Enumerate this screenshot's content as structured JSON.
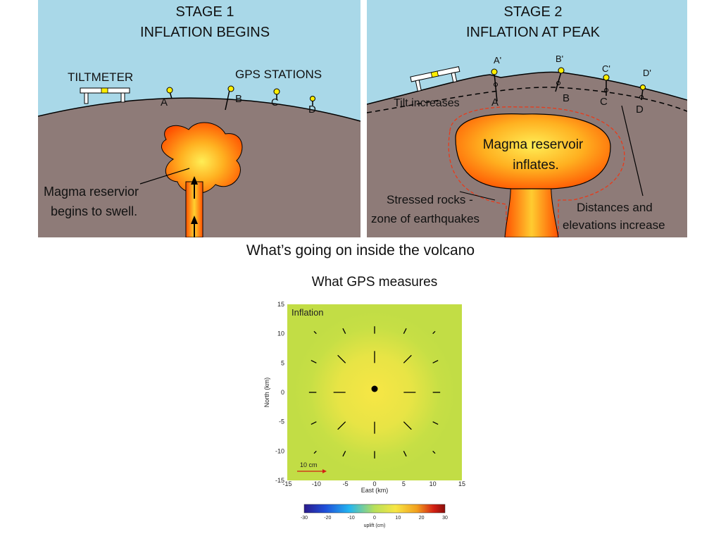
{
  "stage1": {
    "title_line1": "STAGE 1",
    "title_line2": "INFLATION BEGINS",
    "tiltmeter_label": "TILTMETER",
    "gps_label": "GPS STATIONS",
    "stations": [
      "A",
      "B",
      "C",
      "D"
    ],
    "magma_line1": "Magma reservior",
    "magma_line2": "begins to swell."
  },
  "stage2": {
    "title_line1": "STAGE 2",
    "title_line2": "INFLATION AT PEAK",
    "stations": [
      "A",
      "B",
      "C",
      "D"
    ],
    "stations_prime": [
      "A'",
      "B'",
      "C'",
      "D'"
    ],
    "tilt_label": "Tilt increases",
    "reservoir_line1": "Magma reservoir",
    "reservoir_line2": "inflates.",
    "stressed_line1": "Stressed rocks -",
    "stressed_line2": "zone of earthquakes",
    "distances_line1": "Distances and",
    "distances_line2": "elevations increase"
  },
  "page_title": "What’s going on inside the volcano",
  "gps_title": "What GPS measures",
  "gps_plot": {
    "panel_label": "Inflation",
    "x_label": "East (km)",
    "y_label": "North (km)",
    "x_ticks": [
      "-15",
      "-10",
      "-5",
      "0",
      "5",
      "10",
      "15"
    ],
    "y_ticks": [
      "15",
      "10",
      "5",
      "0",
      "-5",
      "-10",
      "-15"
    ],
    "scale_label": "10 cm",
    "colorbar_ticks": [
      "-30",
      "-20",
      "-10",
      "0",
      "10",
      "20",
      "30"
    ],
    "colorbar_label": "uplift (cm)"
  },
  "colors": {
    "sky": "#a9d8e8",
    "ground": "#8e7b78",
    "magma_outer": "#ff5a00",
    "magma_inner": "#ffee55",
    "station": "#ffee00",
    "field_outer": "#c2dd45",
    "field_center": "#f7e645"
  },
  "chart_data": {
    "type": "vector-field",
    "center": [
      0,
      0
    ],
    "xlim": [
      -15,
      15
    ],
    "ylim": [
      -15,
      15
    ],
    "grid_spacing_km": 5,
    "vector_direction": "radially outward from center",
    "colorbar_range": [
      -30,
      30
    ],
    "colormap": [
      "#2b1a8c",
      "#1f4fd9",
      "#23b5f0",
      "#b8e05a",
      "#f7e645",
      "#f2a01e",
      "#d32014",
      "#8a0d0a"
    ]
  }
}
